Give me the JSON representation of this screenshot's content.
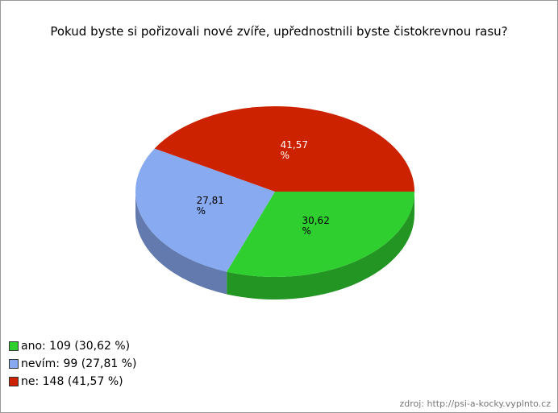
{
  "chart_data": {
    "type": "pie3d",
    "title": "Pokud byste si pořizovali nové zvíře, upřednostnili byste čistokrevnou rasu?",
    "categories": [
      "ano: 109 (30,62 %)",
      "nevím: 99 (27,81 %)",
      "ne: 148 (41,57 %)"
    ],
    "values": [
      30.62,
      27.81,
      41.57
    ],
    "value_labels": [
      "30,62 %",
      "27,81 %",
      "41,57 %"
    ],
    "colors": [
      "#2fcf2f",
      "#88aaf0",
      "#cc2200"
    ],
    "value_label_colors": [
      "#000000",
      "#000000",
      "#ffffff"
    ],
    "source": "zdroj: http://psi-a-kocky.vyplnto.cz"
  }
}
